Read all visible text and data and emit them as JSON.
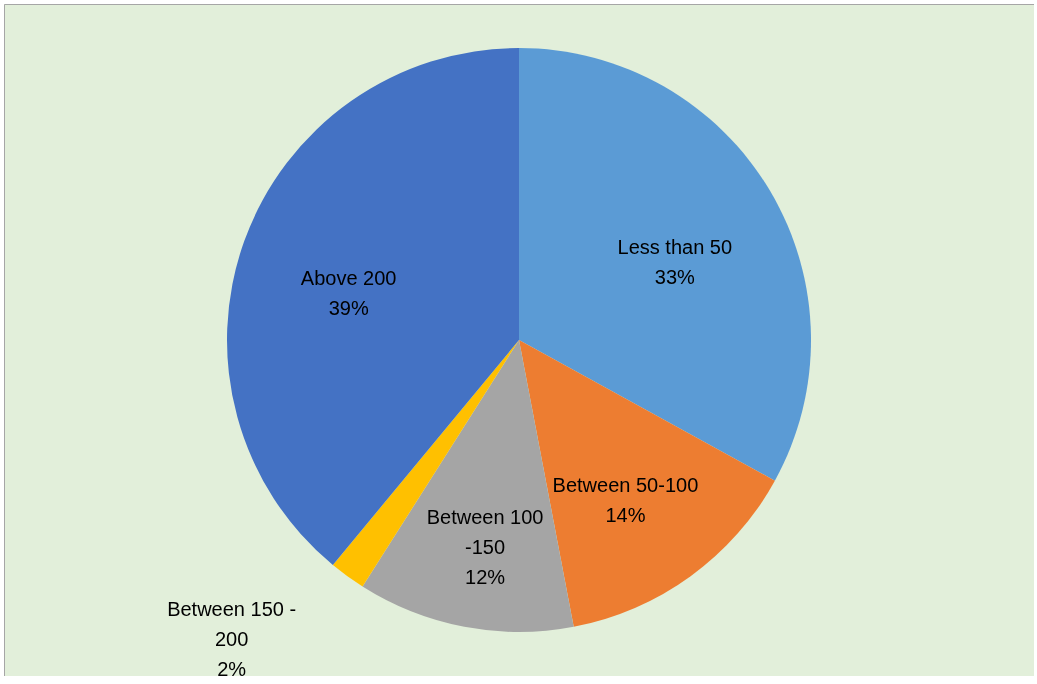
{
  "chart_data": {
    "type": "pie",
    "categories": [
      "Less than 50",
      "Between 50-100",
      "Between 100 -150",
      "Between 150 - 200",
      "Above 200"
    ],
    "values": [
      33,
      14,
      12,
      2,
      39
    ],
    "colors": [
      "#5b9bd5",
      "#ed7d31",
      "#a5a5a5",
      "#ffc000",
      "#4472c4"
    ],
    "value_labels": [
      "33%",
      "14%",
      "12%",
      "2%",
      "39%"
    ]
  }
}
